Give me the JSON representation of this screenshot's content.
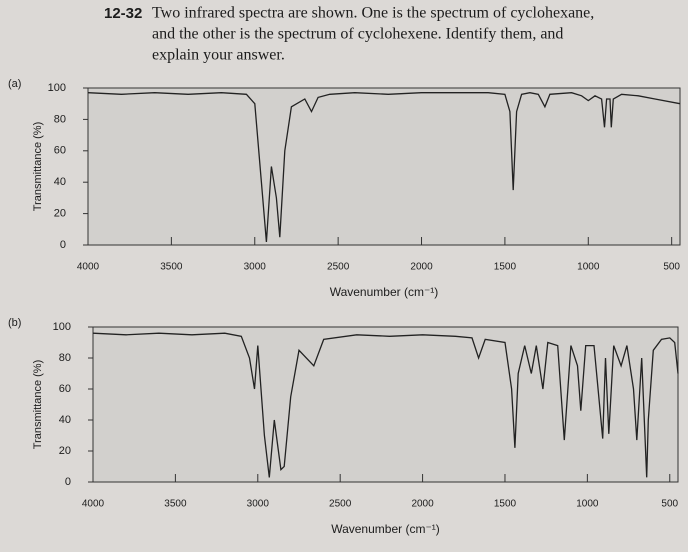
{
  "problem": {
    "number": "12-32",
    "lines": [
      "Two infrared spectra are shown. One is the spectrum of cyclohexane,",
      "and the other is the spectrum of cyclohexene. Identify them, and",
      "explain your answer."
    ]
  },
  "chart_data": [
    {
      "type": "line",
      "panel": "(a)",
      "xlabel": "Wavenumber (cm⁻¹)",
      "ylabel": "Transmittance (%)",
      "color": "#222222",
      "xlim": [
        4000,
        450
      ],
      "ylim": [
        0,
        100
      ],
      "xticks": [
        4000,
        3500,
        3000,
        2500,
        2000,
        1500,
        1000,
        500
      ],
      "yticks": [
        0,
        20,
        40,
        60,
        80,
        100
      ],
      "x": [
        4000,
        3800,
        3600,
        3400,
        3200,
        3050,
        3000,
        2960,
        2930,
        2900,
        2870,
        2850,
        2820,
        2780,
        2700,
        2660,
        2620,
        2550,
        2400,
        2200,
        2000,
        1800,
        1600,
        1500,
        1470,
        1450,
        1430,
        1400,
        1350,
        1300,
        1260,
        1230,
        1100,
        1040,
        1000,
        960,
        920,
        903,
        890,
        870,
        862,
        850,
        800,
        700,
        600,
        450
      ],
      "values": [
        97,
        96,
        97,
        96,
        97,
        96,
        90,
        40,
        2,
        50,
        30,
        5,
        60,
        88,
        93,
        85,
        94,
        96,
        97,
        96,
        97,
        97,
        97,
        96,
        85,
        35,
        85,
        96,
        97,
        96,
        88,
        96,
        97,
        95,
        92,
        95,
        93,
        75,
        93,
        93,
        75,
        93,
        96,
        95,
        93,
        90
      ]
    },
    {
      "type": "line",
      "panel": "(b)",
      "xlabel": "Wavenumber (cm⁻¹)",
      "ylabel": "Transmittance (%)",
      "color": "#222222",
      "xlim": [
        4000,
        450
      ],
      "ylim": [
        0,
        100
      ],
      "xticks": [
        4000,
        3500,
        3000,
        2500,
        2000,
        1500,
        1000,
        500
      ],
      "yticks": [
        0,
        20,
        40,
        60,
        80,
        100
      ],
      "x": [
        4000,
        3800,
        3600,
        3400,
        3200,
        3100,
        3050,
        3020,
        3000,
        2960,
        2930,
        2900,
        2860,
        2840,
        2800,
        2750,
        2660,
        2600,
        2400,
        2200,
        2000,
        1800,
        1700,
        1660,
        1620,
        1500,
        1460,
        1440,
        1420,
        1380,
        1340,
        1310,
        1270,
        1240,
        1180,
        1140,
        1100,
        1060,
        1040,
        1010,
        960,
        907,
        890,
        870,
        840,
        795,
        760,
        720,
        700,
        670,
        640,
        630,
        600,
        550,
        500,
        470,
        450
      ],
      "values": [
        96,
        95,
        96,
        95,
        96,
        94,
        80,
        60,
        88,
        30,
        3,
        40,
        8,
        10,
        55,
        85,
        75,
        92,
        95,
        94,
        95,
        94,
        93,
        80,
        92,
        90,
        60,
        22,
        70,
        88,
        70,
        88,
        60,
        90,
        88,
        27,
        88,
        75,
        46,
        88,
        88,
        28,
        80,
        31,
        88,
        75,
        88,
        60,
        27,
        80,
        3,
        40,
        85,
        92,
        93,
        90,
        70
      ]
    }
  ]
}
